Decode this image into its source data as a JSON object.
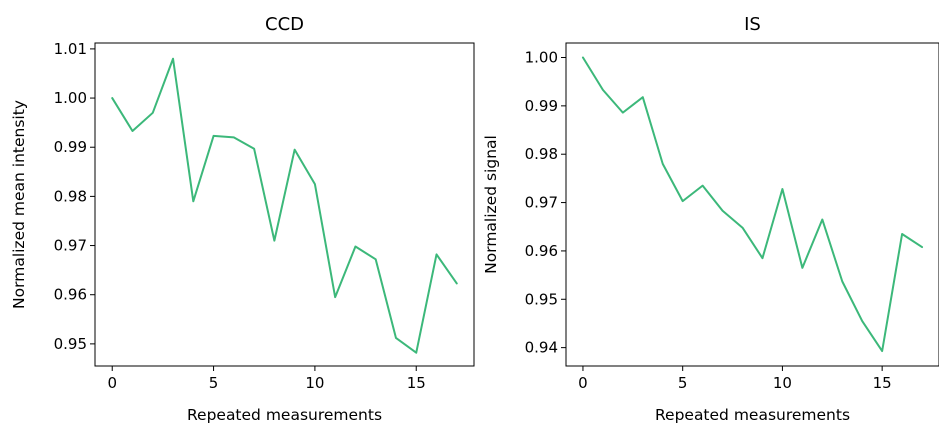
{
  "chart_data": [
    {
      "type": "line",
      "title": "CCD",
      "xlabel": "Repeated measurements",
      "ylabel": "Normalized mean intensity",
      "x": [
        0,
        1,
        2,
        3,
        4,
        5,
        6,
        7,
        8,
        9,
        10,
        11,
        12,
        13,
        14,
        15,
        16,
        17
      ],
      "series": [
        {
          "values": [
            1.0,
            0.9933,
            0.997,
            1.008,
            0.979,
            0.9923,
            0.992,
            0.9897,
            0.971,
            0.9895,
            0.9825,
            0.9595,
            0.9698,
            0.9672,
            0.9512,
            0.9482,
            0.9682,
            0.9623
          ],
          "color": "#3cb87a"
        }
      ],
      "xlim": [
        -0.85,
        17.85
      ],
      "ylim": [
        0.9455,
        1.0112
      ],
      "xticks": [
        0,
        5,
        10,
        15
      ],
      "xtick_labels": [
        "0",
        "5",
        "10",
        "15"
      ],
      "yticks": [
        0.95,
        0.96,
        0.97,
        0.98,
        0.99,
        1.0,
        1.01
      ],
      "ytick_labels": [
        "0.95",
        "0.96",
        "0.97",
        "0.98",
        "0.99",
        "1.00",
        "1.01"
      ],
      "grid": false
    },
    {
      "type": "line",
      "title": "IS",
      "xlabel": "Repeated measurements",
      "ylabel": "Normalized signal",
      "x": [
        0,
        1,
        2,
        3,
        4,
        5,
        6,
        7,
        8,
        9,
        10,
        11,
        12,
        13,
        14,
        15,
        16,
        17
      ],
      "series": [
        {
          "values": [
            1.0,
            0.9933,
            0.9886,
            0.9918,
            0.978,
            0.9703,
            0.9735,
            0.9683,
            0.9648,
            0.9585,
            0.9728,
            0.9565,
            0.9665,
            0.9537,
            0.9455,
            0.9393,
            0.9635,
            0.9608
          ],
          "color": "#3cb87a"
        }
      ],
      "xlim": [
        -0.85,
        17.85
      ],
      "ylim": [
        0.9362,
        1.003
      ],
      "xticks": [
        0,
        5,
        10,
        15
      ],
      "xtick_labels": [
        "0",
        "5",
        "10",
        "15"
      ],
      "yticks": [
        0.94,
        0.95,
        0.96,
        0.97,
        0.98,
        0.99,
        1.0
      ],
      "ytick_labels": [
        "0.94",
        "0.95",
        "0.96",
        "0.97",
        "0.98",
        "0.99",
        "1.00"
      ],
      "grid": false
    }
  ]
}
